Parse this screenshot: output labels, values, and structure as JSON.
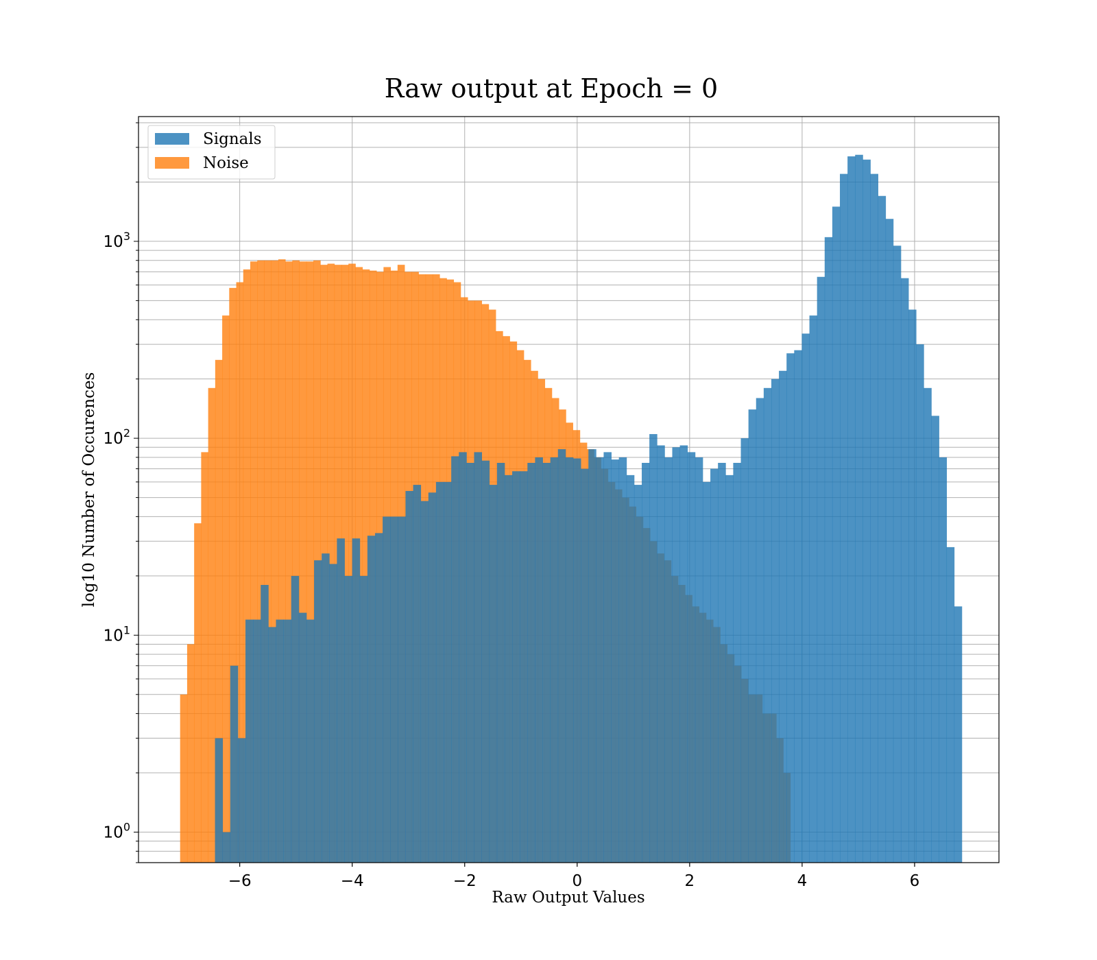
{
  "chart_data": {
    "type": "bar",
    "title": "Raw output at Epoch = 0",
    "xlabel": "Raw Output Values",
    "ylabel": "log10 Number of Occurences",
    "xlim": [
      -7.8,
      7.5
    ],
    "ylim": [
      0.7,
      4300
    ],
    "yscale": "log",
    "xticks": [
      -6,
      -4,
      -2,
      0,
      2,
      4,
      6
    ],
    "xtick_labels": [
      "−6",
      "−4",
      "−2",
      "0",
      "2",
      "4",
      "6"
    ],
    "yticks": [
      1,
      10,
      100,
      1000
    ],
    "grid": true,
    "legend": {
      "placement": "top-left"
    },
    "series": [
      {
        "name": "Signals",
        "color": "#1f77b4",
        "opacity": 0.8,
        "bin_edges": [
          -6.44,
          6.84
        ],
        "values": [
          3,
          1,
          7,
          3,
          12,
          12,
          18,
          11,
          12,
          12,
          20,
          13,
          12,
          24,
          26,
          23,
          31,
          20,
          31,
          20,
          32,
          33,
          40,
          40,
          40,
          54,
          58,
          48,
          53,
          60,
          60,
          81,
          85,
          75,
          85,
          77,
          58,
          75,
          65,
          68,
          68,
          75,
          80,
          75,
          80,
          88,
          80,
          79,
          70,
          88,
          80,
          85,
          78,
          80,
          65,
          58,
          75,
          105,
          92,
          80,
          90,
          92,
          85,
          80,
          60,
          70,
          75,
          65,
          75,
          100,
          140,
          160,
          180,
          200,
          220,
          270,
          280,
          340,
          420,
          660,
          1050,
          1500,
          2200,
          2700,
          2750,
          2600,
          2200,
          1700,
          1300,
          950,
          650,
          450,
          300,
          180,
          130,
          80,
          28,
          14
        ]
      },
      {
        "name": "Noise",
        "color": "#ff7f0e",
        "opacity": 0.8,
        "bin_edges": [
          -7.06,
          3.79
        ],
        "values": [
          5,
          9,
          37,
          85,
          180,
          250,
          420,
          580,
          620,
          720,
          790,
          800,
          800,
          800,
          810,
          790,
          800,
          790,
          790,
          800,
          760,
          770,
          760,
          760,
          770,
          740,
          720,
          710,
          700,
          740,
          710,
          760,
          700,
          700,
          680,
          680,
          680,
          650,
          640,
          620,
          520,
          500,
          500,
          480,
          450,
          350,
          330,
          310,
          280,
          250,
          220,
          200,
          180,
          160,
          140,
          120,
          110,
          95,
          88,
          80,
          70,
          60,
          55,
          50,
          45,
          40,
          35,
          30,
          26,
          24,
          20,
          18,
          16,
          14,
          13,
          12,
          11,
          9,
          8,
          7,
          6,
          5,
          5,
          4,
          4,
          3,
          2
        ]
      }
    ]
  }
}
